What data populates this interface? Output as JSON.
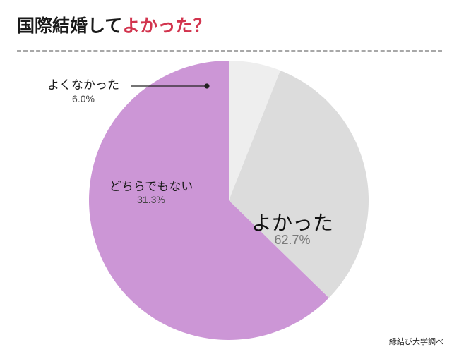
{
  "title": {
    "prefix": "国際結婚して",
    "highlight": "よかった？",
    "highlight_color": "#d2344e"
  },
  "source": "縁結び大学調べ",
  "chart_data": {
    "type": "pie",
    "start": "top",
    "direction": "counterclockwise",
    "slices": [
      {
        "label": "よかった",
        "value": 62.7,
        "display": "62.7%",
        "color": "#cc96d6"
      },
      {
        "label": "どちらでもない",
        "value": 31.3,
        "display": "31.3%",
        "color": "#dcdcdc"
      },
      {
        "label": "よくなかった",
        "value": 6.0,
        "display": "6.0%",
        "color": "#eeeeee"
      }
    ]
  }
}
